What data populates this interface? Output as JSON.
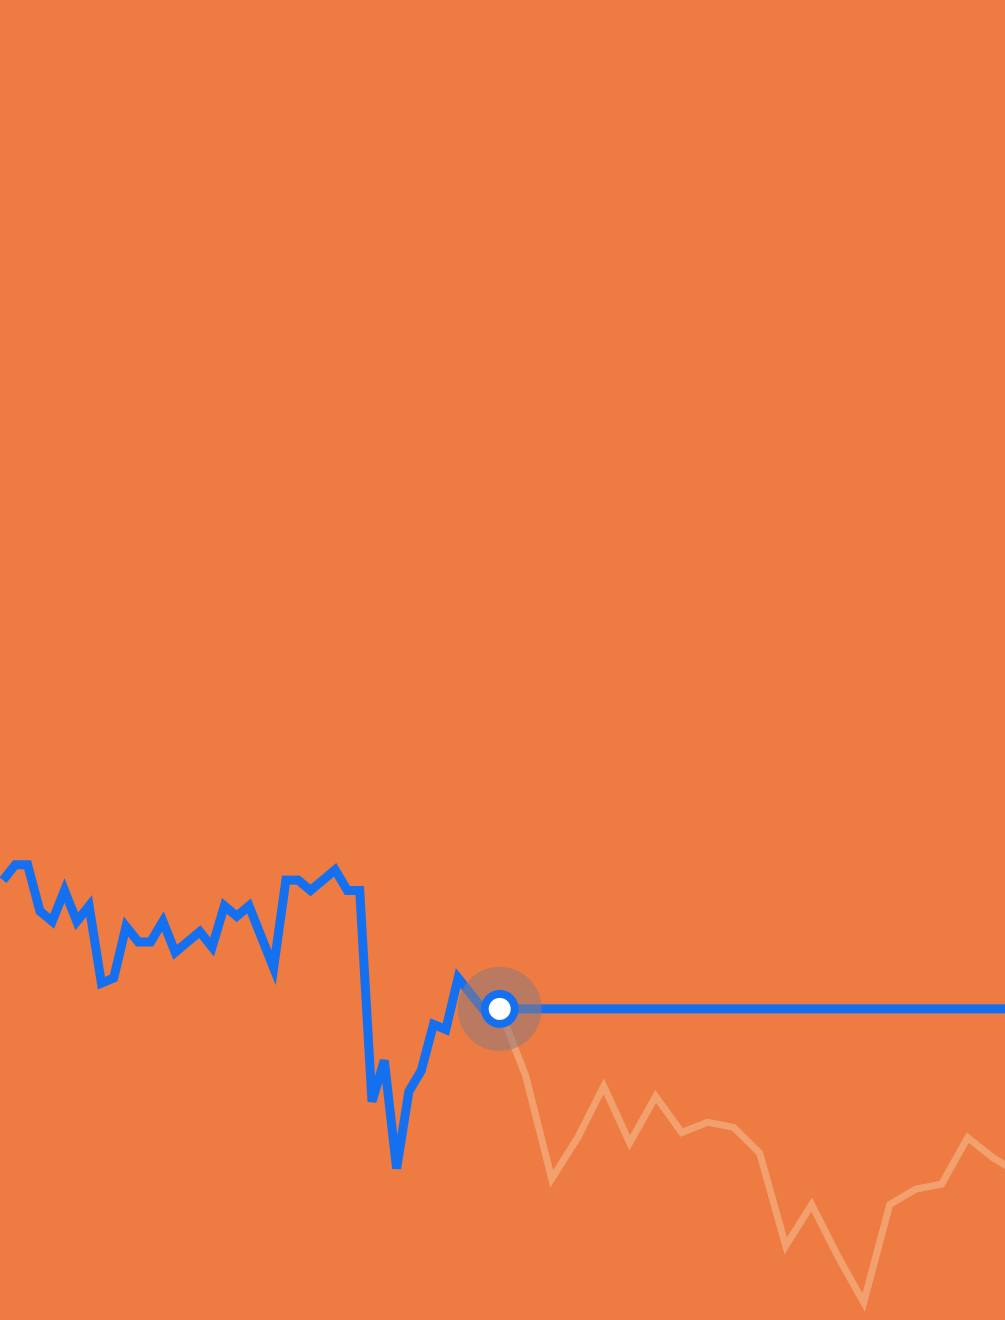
{
  "colors": {
    "background": "#ED7B42",
    "line": "#1570EF",
    "faded_line": "#F2A06E",
    "marker_halo": "#8E7A7C",
    "marker_center": "#FFFFFF"
  },
  "chart_data": {
    "type": "line",
    "grid": false,
    "legend": "none",
    "series": [
      {
        "values": [
          19,
          22,
          22,
          13,
          11,
          17,
          11,
          14,
          -1,
          0,
          10,
          7,
          7,
          11,
          5,
          7,
          9,
          6,
          14,
          12,
          14,
          8,
          2,
          19,
          19,
          17,
          19,
          21,
          17,
          17,
          -24,
          -16,
          -37,
          -22,
          -18,
          -9,
          -10,
          0,
          -3,
          -6
        ]
      },
      {
        "values": [
          -6,
          -19,
          -39,
          -31,
          -21,
          -32,
          -23,
          -30,
          -28,
          -29,
          -34,
          -52,
          -44,
          -54,
          -63,
          -44,
          -41,
          -40,
          -31,
          -35,
          -38,
          -34,
          -40
        ]
      }
    ],
    "current_value": -6
  }
}
